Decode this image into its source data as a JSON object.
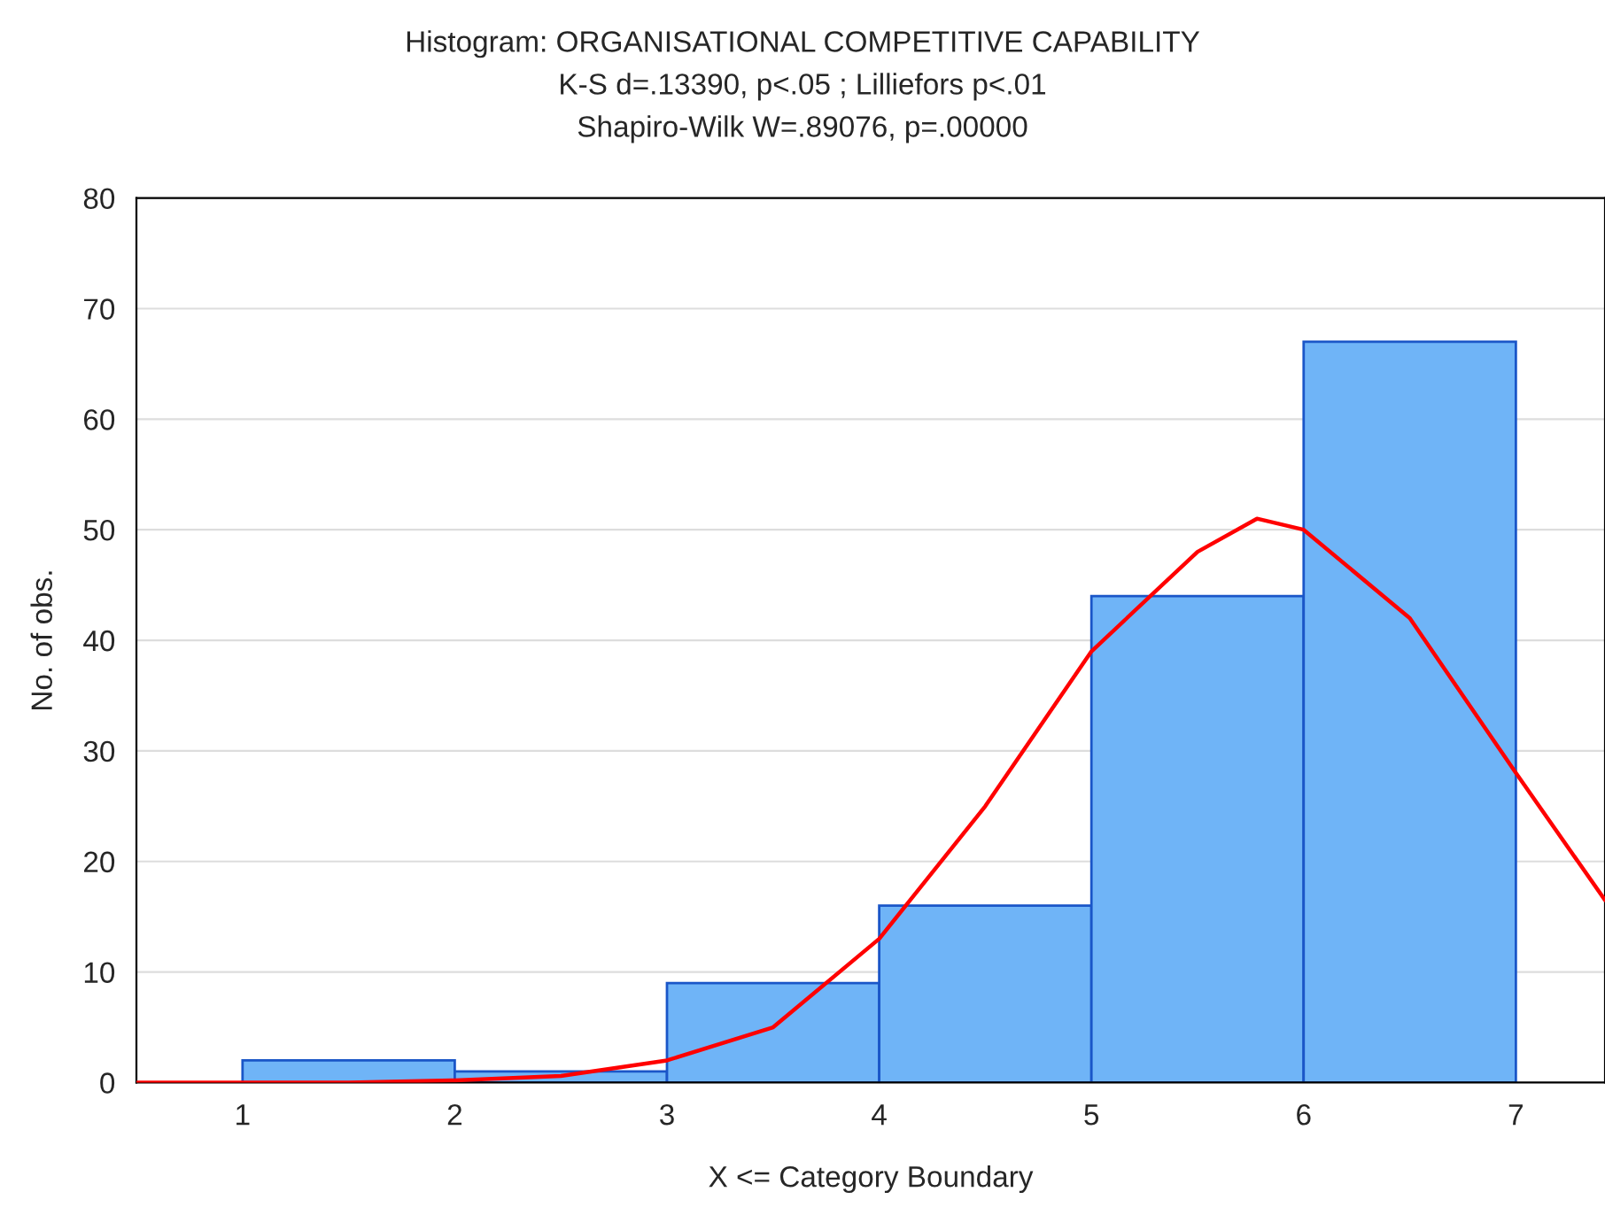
{
  "chart_data": {
    "type": "histogram",
    "title": "Histogram: ORGANISATIONAL COMPETITIVE CAPABILITY",
    "subtitle": "K-S d=.13390, p<.05 ; Lilliefors p<.01\nShapiro-Wilk W=.89076, p=.00000",
    "xlabel": "X <= Category Boundary",
    "ylabel": "No. of obs.",
    "bins": [
      1,
      2,
      3,
      4,
      5,
      6,
      7
    ],
    "series": [
      {
        "type": "histogram",
        "color": "#6fb4f7",
        "values": [
          2,
          1,
          9,
          16,
          44,
          67
        ]
      },
      {
        "type": "line",
        "color": "#ff0000",
        "x": [
          0.5,
          1,
          1.5,
          2,
          2.5,
          3,
          3.5,
          4,
          4.5,
          5,
          5.5,
          5.78,
          6,
          6.5,
          7,
          7.42
        ],
        "values": [
          0,
          0,
          0,
          0.2,
          0.6,
          2,
          5,
          13,
          25,
          39,
          48,
          51,
          50,
          42,
          28,
          16.5
        ]
      }
    ],
    "xlim": [
      0.5,
      7.42
    ],
    "xticks": [
      1,
      2,
      3,
      4,
      5,
      6,
      7
    ],
    "ylim": [
      0,
      80
    ],
    "yticks": [
      0,
      10,
      20,
      30,
      40,
      50,
      60,
      70,
      80
    ],
    "grid": "y",
    "legend": false
  }
}
